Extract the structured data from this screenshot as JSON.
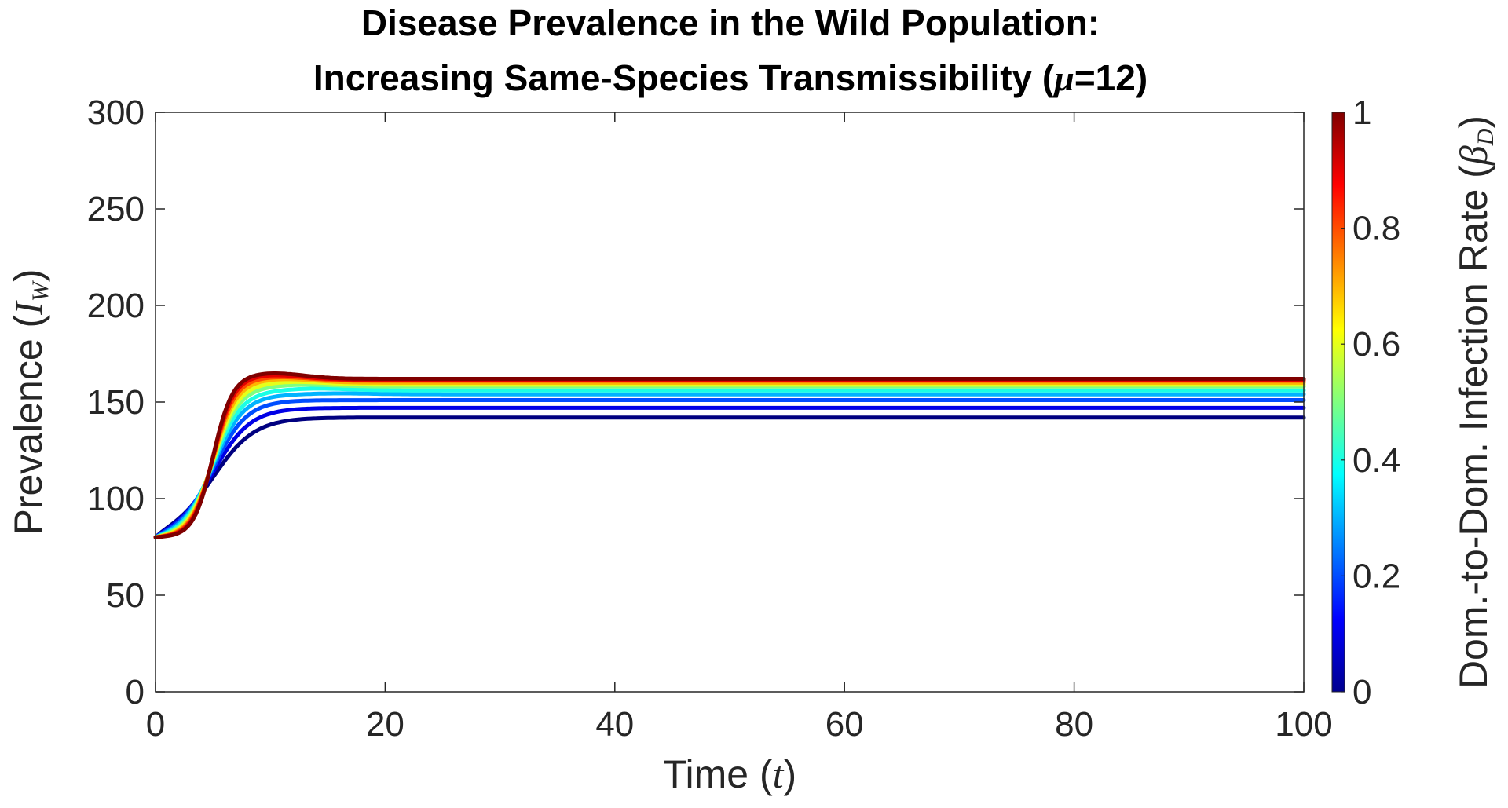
{
  "chart_data": {
    "type": "line",
    "title_line1": "Disease Prevalence in the Wild Population:",
    "title_line2_prefix": "Increasing Same-Species Transmissibility (",
    "title_line2_symbol": "μ",
    "title_line2_suffix": "=12)",
    "xlabel_text": "Time (",
    "xlabel_symbol": "t",
    "xlabel_close": ")",
    "ylabel_text": "Prevalence (",
    "ylabel_symbol": "I",
    "ylabel_subscript": "W",
    "ylabel_close": ")",
    "xlim": [
      0,
      100
    ],
    "ylim": [
      0,
      300
    ],
    "xticks": [
      0,
      20,
      40,
      60,
      80,
      100
    ],
    "xtick_labels": [
      "0",
      "20",
      "40",
      "60",
      "80",
      "100"
    ],
    "yticks": [
      0,
      50,
      100,
      150,
      200,
      250,
      300
    ],
    "ytick_labels": [
      "0",
      "50",
      "100",
      "150",
      "200",
      "250",
      "300"
    ],
    "colorbar": {
      "label_text": "Dom.-to-Dom. Infection Rate (",
      "label_symbol": "β",
      "label_subscript": "D",
      "label_close": ")",
      "range": [
        0,
        1
      ],
      "ticks": [
        0,
        0.2,
        0.4,
        0.6,
        0.8,
        1
      ],
      "tick_labels": [
        "0",
        "0.2",
        "0.4",
        "0.6",
        "0.8",
        "1"
      ],
      "colormap": "jet"
    },
    "series": [
      {
        "name": "βD = 0.0",
        "beta": 0.0,
        "initial": 80,
        "steady_state": 142,
        "peak": 142,
        "peak_time": 25
      },
      {
        "name": "βD = 0.1",
        "beta": 0.1,
        "initial": 80,
        "steady_state": 147,
        "peak": 147,
        "peak_time": 22
      },
      {
        "name": "βD = 0.2",
        "beta": 0.2,
        "initial": 80,
        "steady_state": 151,
        "peak": 151,
        "peak_time": 19
      },
      {
        "name": "βD = 0.3",
        "beta": 0.3,
        "initial": 80,
        "steady_state": 154,
        "peak": 154.5,
        "peak_time": 16
      },
      {
        "name": "βD = 0.4",
        "beta": 0.4,
        "initial": 80,
        "steady_state": 156,
        "peak": 157,
        "peak_time": 14
      },
      {
        "name": "βD = 0.5",
        "beta": 0.5,
        "initial": 80,
        "steady_state": 158,
        "peak": 159,
        "peak_time": 13
      },
      {
        "name": "βD = 0.6",
        "beta": 0.6,
        "initial": 80,
        "steady_state": 159,
        "peak": 160.5,
        "peak_time": 12
      },
      {
        "name": "βD = 0.7",
        "beta": 0.7,
        "initial": 80,
        "steady_state": 160,
        "peak": 162,
        "peak_time": 11
      },
      {
        "name": "βD = 0.8",
        "beta": 0.8,
        "initial": 80,
        "steady_state": 161,
        "peak": 163,
        "peak_time": 10.5
      },
      {
        "name": "βD = 0.9",
        "beta": 0.9,
        "initial": 80,
        "steady_state": 161.5,
        "peak": 164,
        "peak_time": 10
      },
      {
        "name": "βD = 1.0",
        "beta": 1.0,
        "initial": 80,
        "steady_state": 162,
        "peak": 165,
        "peak_time": 10
      }
    ]
  }
}
